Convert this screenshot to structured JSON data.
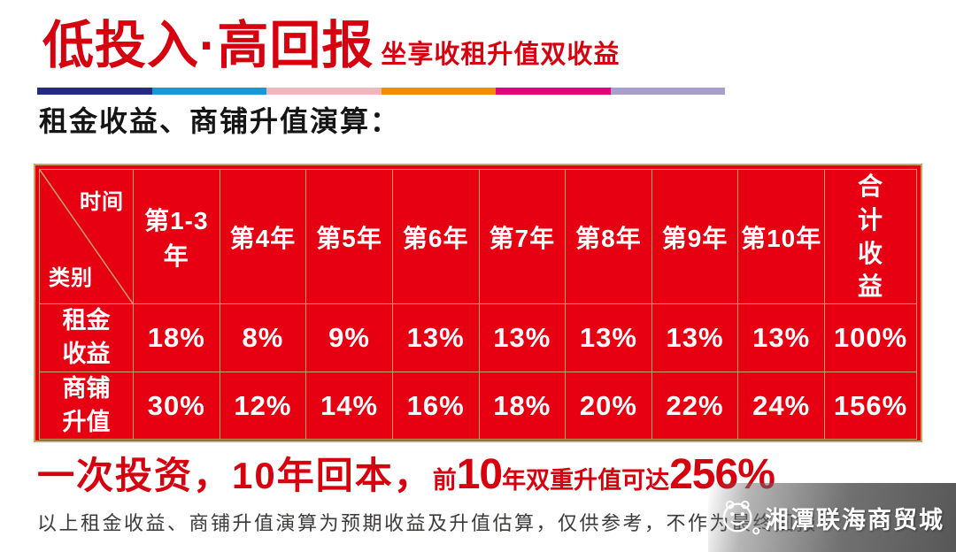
{
  "page": {
    "background": "#ffffff",
    "accent_red": "#d7000f",
    "table_red": "#e60012",
    "table_border_gold": "#c9a469"
  },
  "header": {
    "title": "低投入·高回报",
    "subtitle": "坐享收租升值双收益",
    "section_heading": "租金收益、商铺升值演算：",
    "divider_colors": [
      "#252b7e",
      "#1897d5",
      "#f5b4bb",
      "#f08e06",
      "#e5017d",
      "#a89ed0"
    ]
  },
  "chart_data": {
    "type": "table",
    "title": "租金收益、商铺升值演算",
    "corner_labels": {
      "top_right": "时间",
      "bottom_left": "类别"
    },
    "columns": [
      "第1-3年",
      "第4年",
      "第5年",
      "第6年",
      "第7年",
      "第8年",
      "第9年",
      "第10年",
      "合计收益"
    ],
    "rows": [
      {
        "label": "租金收益",
        "values": [
          "18%",
          "8%",
          "9%",
          "13%",
          "13%",
          "13%",
          "13%",
          "13%",
          "100%"
        ]
      },
      {
        "label": "商铺升值",
        "values": [
          "30%",
          "12%",
          "14%",
          "16%",
          "18%",
          "20%",
          "22%",
          "24%",
          "156%"
        ]
      }
    ]
  },
  "footer": {
    "headline": {
      "lead": "一次投资，10年回本，",
      "small1": "前",
      "big1": "10",
      "small2": "年双重升值可达",
      "big2": "256%"
    },
    "disclaimer": "以上租金收益、商铺升值演算为预期收益及升值估算，仅供参考，不作为最终回报",
    "watermark": {
      "name": "湘潭联海商贸城",
      "logo": "wechat-style-face-logo"
    }
  }
}
